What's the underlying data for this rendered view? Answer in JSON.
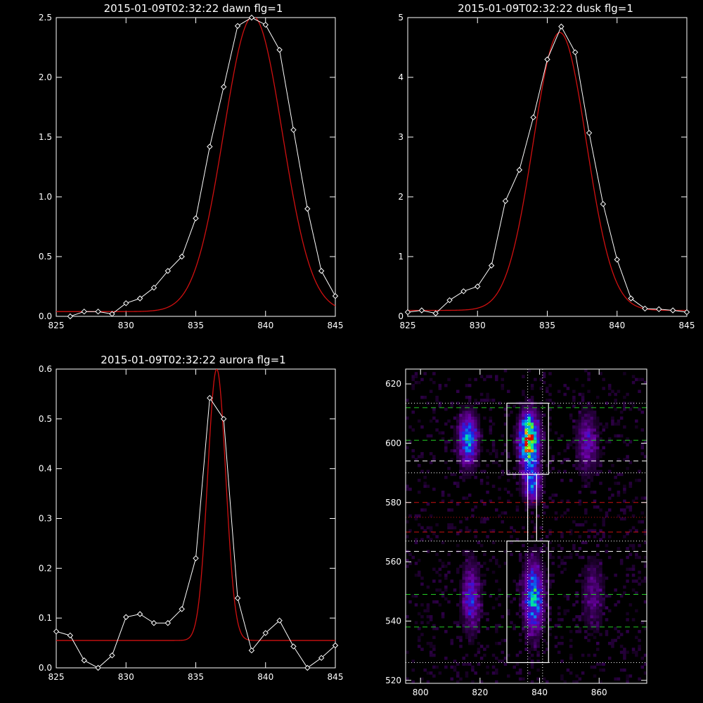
{
  "panels": {
    "dawn": {
      "title": "2015-01-09T02:32:22 dawn flg=1"
    },
    "dusk": {
      "title": "2015-01-09T02:32:22 dusk flg=1"
    },
    "aurora": {
      "title": "2015-01-09T02:32:22 aurora flg=1"
    }
  },
  "colors": {
    "data": "#ffffff",
    "fit": "#d01010",
    "green_lines": "#22cc22",
    "red_lines": "#cc1111",
    "white_lines": "#ffffff"
  },
  "chart_data": [
    {
      "type": "line",
      "title": "2015-01-09T02:32:22 dawn flg=1",
      "xlim": [
        825,
        845
      ],
      "ylim": [
        0,
        2.5
      ],
      "xticks": [
        "825",
        "830",
        "835",
        "840",
        "845"
      ],
      "yticks": [
        "0.0",
        "0.5",
        "1.0",
        "1.5",
        "2.0",
        "2.5"
      ],
      "series": [
        {
          "role": "data",
          "marker": "diamond",
          "x": [
            826,
            827,
            828,
            829,
            830,
            831,
            832,
            833,
            834,
            835,
            836,
            837,
            838,
            839,
            840,
            841,
            842,
            843,
            844,
            845
          ],
          "y": [
            0.0,
            0.04,
            0.04,
            0.02,
            0.11,
            0.15,
            0.24,
            0.38,
            0.5,
            0.82,
            1.42,
            1.92,
            2.43,
            2.5,
            2.44,
            2.23,
            1.56,
            0.9,
            0.38,
            0.17
          ]
        },
        {
          "role": "gaussian-fit",
          "center": 839.1,
          "sigma": 2.1,
          "amplitude": 2.47,
          "offset": 0.04
        }
      ]
    },
    {
      "type": "line",
      "title": "2015-01-09T02:32:22 dusk flg=1",
      "xlim": [
        825,
        845
      ],
      "ylim": [
        0,
        5
      ],
      "xticks": [
        "825",
        "830",
        "835",
        "840",
        "845"
      ],
      "yticks": [
        "0",
        "1",
        "2",
        "3",
        "4",
        "5"
      ],
      "series": [
        {
          "role": "data",
          "marker": "diamond",
          "x": [
            825,
            826,
            827,
            828,
            829,
            830,
            831,
            832,
            833,
            834,
            835,
            836,
            837,
            838,
            839,
            840,
            841,
            842,
            843,
            844,
            845
          ],
          "y": [
            0.07,
            0.1,
            0.05,
            0.27,
            0.42,
            0.5,
            0.85,
            1.93,
            2.45,
            3.33,
            4.3,
            4.85,
            4.42,
            3.07,
            1.88,
            0.95,
            0.3,
            0.13,
            0.12,
            0.1,
            0.07
          ]
        },
        {
          "role": "gaussian-fit",
          "center": 835.9,
          "sigma": 1.9,
          "amplitude": 4.65,
          "offset": 0.1
        }
      ]
    },
    {
      "type": "line",
      "title": "2015-01-09T02:32:22 aurora flg=1",
      "xlim": [
        825,
        845
      ],
      "ylim": [
        0,
        0.6
      ],
      "xticks": [
        "825",
        "830",
        "835",
        "840",
        "845"
      ],
      "yticks": [
        "0.0",
        "0.1",
        "0.2",
        "0.3",
        "0.4",
        "0.5",
        "0.6"
      ],
      "series": [
        {
          "role": "data",
          "marker": "diamond",
          "x": [
            825,
            826,
            827,
            828,
            829,
            830,
            831,
            832,
            833,
            834,
            835,
            836,
            837,
            838,
            839,
            840,
            841,
            842,
            843,
            844,
            845
          ],
          "y": [
            0.073,
            0.065,
            0.015,
            0.0,
            0.025,
            0.102,
            0.108,
            0.09,
            0.09,
            0.118,
            0.22,
            0.542,
            0.5,
            0.14,
            0.035,
            0.07,
            0.095,
            0.043,
            0.0,
            0.02,
            0.045
          ]
        },
        {
          "role": "gaussian-fit",
          "center": 836.5,
          "sigma": 0.65,
          "amplitude": 0.545,
          "offset": 0.055
        }
      ]
    },
    {
      "type": "heatmap",
      "xlim": [
        795,
        876
      ],
      "ylim": [
        519,
        625
      ],
      "xticks": [
        "800",
        "820",
        "840",
        "860"
      ],
      "yticks": [
        "520",
        "540",
        "560",
        "580",
        "600",
        "620"
      ],
      "bands": [
        {
          "x": 816,
          "y": 601,
          "sx": 2.2,
          "sy": 6,
          "peak": 0.58
        },
        {
          "x": 817,
          "y": 548,
          "sx": 2.0,
          "sy": 8,
          "peak": 0.38
        },
        {
          "x": 836.5,
          "y": 601,
          "sx": 2.2,
          "sy": 6,
          "peak": 1.0
        },
        {
          "x": 837.5,
          "y": 586,
          "sx": 2.0,
          "sy": 4,
          "peak": 0.5
        },
        {
          "x": 838,
          "y": 548,
          "sx": 2.2,
          "sy": 8,
          "peak": 0.62
        },
        {
          "x": 856,
          "y": 600,
          "sx": 2.5,
          "sy": 7,
          "peak": 0.3
        },
        {
          "x": 858,
          "y": 549,
          "sx": 2.5,
          "sy": 8,
          "peak": 0.22
        }
      ],
      "vlines_dotted": [
        836,
        841
      ],
      "hlines": [
        {
          "y": 613.5,
          "style": "dotted",
          "color": "white"
        },
        {
          "y": 612,
          "style": "dashed",
          "color": "green"
        },
        {
          "y": 601,
          "style": "dashed",
          "color": "green"
        },
        {
          "y": 594,
          "style": "dashed",
          "color": "white"
        },
        {
          "y": 590,
          "style": "dotted",
          "color": "white"
        },
        {
          "y": 580,
          "style": "dashed",
          "color": "red"
        },
        {
          "y": 575,
          "style": "dotted",
          "color": "red"
        },
        {
          "y": 570,
          "style": "dashed",
          "color": "red"
        },
        {
          "y": 567,
          "style": "dotted",
          "color": "white"
        },
        {
          "y": 563.5,
          "style": "dashed",
          "color": "white"
        },
        {
          "y": 549,
          "style": "dashed",
          "color": "green"
        },
        {
          "y": 538,
          "style": "dashed",
          "color": "green"
        },
        {
          "y": 526,
          "style": "dotted",
          "color": "white"
        }
      ],
      "boxes": [
        {
          "x0": 829,
          "x1": 843,
          "y0": 589.5,
          "y1": 613.5
        },
        {
          "x0": 829,
          "x1": 843,
          "y0": 526,
          "y1": 567
        }
      ],
      "connector_x": [
        836,
        839
      ],
      "connector_y": [
        567,
        589.5
      ]
    }
  ]
}
